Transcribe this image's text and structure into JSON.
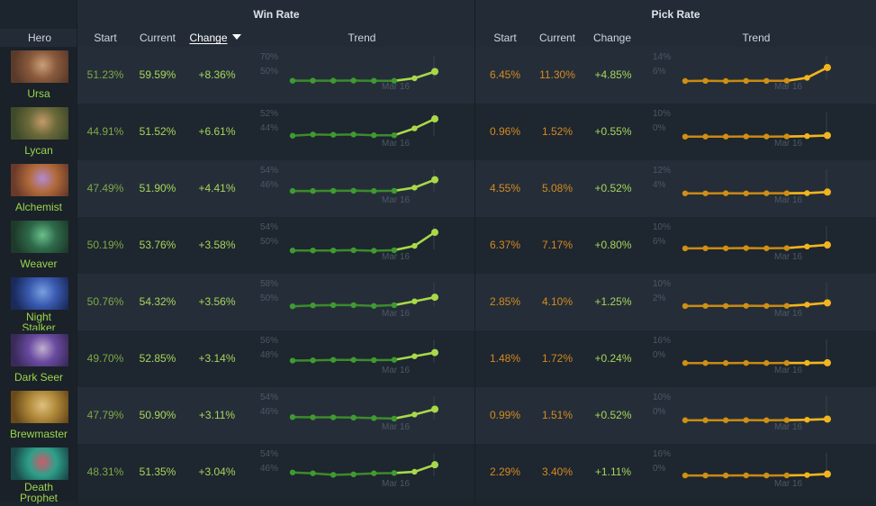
{
  "groups": {
    "win_rate": "Win Rate",
    "pick_rate": "Pick Rate"
  },
  "columns": {
    "hero": "Hero",
    "start": "Start",
    "current": "Current",
    "change": "Change",
    "trend": "Trend"
  },
  "sort": {
    "column": "win_rate.change",
    "direction": "descending"
  },
  "colors": {
    "win_line": "#3c8a2e",
    "win_point": "#3f9b31",
    "win_accent": "#a9d84a",
    "pick_line": "#c98a12",
    "pick_point": "#d18f13",
    "pick_accent": "#f2b51d",
    "axis_text": "#4a5866"
  },
  "heroes": [
    {
      "name": "Ursa",
      "icon": "ursa-portrait-icon",
      "win": {
        "start": "51.23%",
        "current": "59.59%",
        "change": "+8.36%",
        "axis_top": "70%",
        "axis_bottom": "50%",
        "date": "Mar 16",
        "values": [
          51.23,
          51.3,
          51.25,
          51.35,
          51.2,
          51.18,
          53.5,
          59.59
        ],
        "min": 46,
        "max": 74
      },
      "pick": {
        "start": "6.45%",
        "current": "11.30%",
        "change": "+4.85%",
        "axis_top": "14%",
        "axis_bottom": "6%",
        "date": "Mar 16",
        "values": [
          6.45,
          6.5,
          6.45,
          6.5,
          6.5,
          6.55,
          7.6,
          11.3
        ],
        "min": 4.5,
        "max": 15.5
      }
    },
    {
      "name": "Lycan",
      "icon": "lycan-portrait-icon",
      "win": {
        "start": "44.91%",
        "current": "51.52%",
        "change": "+6.61%",
        "axis_top": "52%",
        "axis_bottom": "44%",
        "date": "Mar 16",
        "values": [
          44.91,
          45.4,
          45.3,
          45.4,
          45.1,
          45.1,
          47.8,
          51.52
        ],
        "min": 42,
        "max": 54
      },
      "pick": {
        "start": "0.96%",
        "current": "1.52%",
        "change": "+0.55%",
        "axis_top": "10%",
        "axis_bottom": "0%",
        "date": "Mar 16",
        "values": [
          0.96,
          1.0,
          1.0,
          1.05,
          1.02,
          1.05,
          1.2,
          1.52
        ],
        "min": -2,
        "max": 12
      }
    },
    {
      "name": "Alchemist",
      "icon": "alchemist-portrait-icon",
      "win": {
        "start": "47.49%",
        "current": "51.90%",
        "change": "+4.41%",
        "axis_top": "54%",
        "axis_bottom": "46%",
        "date": "Mar 16",
        "values": [
          47.49,
          47.5,
          47.55,
          47.6,
          47.5,
          47.55,
          48.8,
          51.9
        ],
        "min": 44,
        "max": 56
      },
      "pick": {
        "start": "4.55%",
        "current": "5.08%",
        "change": "+0.52%",
        "axis_top": "12%",
        "axis_bottom": "4%",
        "date": "Mar 16",
        "values": [
          4.55,
          4.55,
          4.6,
          4.55,
          4.6,
          4.6,
          4.65,
          5.08
        ],
        "min": 2,
        "max": 14
      }
    },
    {
      "name": "Weaver",
      "icon": "weaver-portrait-icon",
      "win": {
        "start": "50.19%",
        "current": "53.76%",
        "change": "+3.58%",
        "axis_top": "54%",
        "axis_bottom": "50%",
        "date": "Mar 16",
        "values": [
          50.19,
          50.2,
          50.2,
          50.25,
          50.15,
          50.25,
          51.1,
          53.76
        ],
        "min": 49,
        "max": 55
      },
      "pick": {
        "start": "6.37%",
        "current": "7.17%",
        "change": "+0.80%",
        "axis_top": "10%",
        "axis_bottom": "6%",
        "date": "Mar 16",
        "values": [
          6.37,
          6.4,
          6.4,
          6.45,
          6.4,
          6.45,
          6.8,
          7.17
        ],
        "min": 4.5,
        "max": 11.5
      }
    },
    {
      "name": "Night Stalker",
      "icon": "night-stalker-portrait-icon",
      "win": {
        "start": "50.76%",
        "current": "54.32%",
        "change": "+3.56%",
        "axis_top": "58%",
        "axis_bottom": "50%",
        "date": "Mar 16",
        "values": [
          50.76,
          51.1,
          51.2,
          51.2,
          50.9,
          51.2,
          52.7,
          54.32
        ],
        "min": 48,
        "max": 60
      },
      "pick": {
        "start": "2.85%",
        "current": "4.10%",
        "change": "+1.25%",
        "axis_top": "10%",
        "axis_bottom": "2%",
        "date": "Mar 16",
        "values": [
          2.85,
          2.9,
          2.9,
          2.95,
          2.9,
          2.95,
          3.4,
          4.1
        ],
        "min": 0,
        "max": 12
      }
    },
    {
      "name": "Dark Seer",
      "icon": "dark-seer-portrait-icon",
      "win": {
        "start": "49.70%",
        "current": "52.85%",
        "change": "+3.14%",
        "axis_top": "56%",
        "axis_bottom": "48%",
        "date": "Mar 16",
        "values": [
          49.7,
          49.8,
          50.0,
          50.0,
          49.9,
          50.0,
          51.4,
          52.85
        ],
        "min": 46,
        "max": 58
      },
      "pick": {
        "start": "1.48%",
        "current": "1.72%",
        "change": "+0.24%",
        "axis_top": "16%",
        "axis_bottom": "0%",
        "date": "Mar 16",
        "values": [
          1.48,
          1.5,
          1.5,
          1.55,
          1.5,
          1.55,
          1.6,
          1.72
        ],
        "min": -4,
        "max": 20
      }
    },
    {
      "name": "Brewmaster",
      "icon": "brewmaster-portrait-icon",
      "win": {
        "start": "47.79%",
        "current": "50.90%",
        "change": "+3.11%",
        "axis_top": "54%",
        "axis_bottom": "46%",
        "date": "Mar 16",
        "values": [
          47.79,
          47.7,
          47.7,
          47.6,
          47.4,
          47.2,
          48.8,
          50.9
        ],
        "min": 44,
        "max": 56
      },
      "pick": {
        "start": "0.99%",
        "current": "1.51%",
        "change": "+0.52%",
        "axis_top": "10%",
        "axis_bottom": "0%",
        "date": "Mar 16",
        "values": [
          0.99,
          1.0,
          1.0,
          1.05,
          1.0,
          1.05,
          1.2,
          1.51
        ],
        "min": -2,
        "max": 12
      }
    },
    {
      "name": "Death Prophet",
      "icon": "death-prophet-portrait-icon",
      "win": {
        "start": "48.31%",
        "current": "51.35%",
        "change": "+3.04%",
        "axis_top": "54%",
        "axis_bottom": "46%",
        "date": "Mar 16",
        "values": [
          48.31,
          48.0,
          47.4,
          47.6,
          48.0,
          48.1,
          48.6,
          51.35
        ],
        "min": 44,
        "max": 56
      },
      "pick": {
        "start": "2.29%",
        "current": "3.40%",
        "change": "+1.11%",
        "axis_top": "16%",
        "axis_bottom": "0%",
        "date": "Mar 16",
        "values": [
          2.29,
          2.3,
          2.3,
          2.35,
          2.3,
          2.35,
          2.6,
          3.4
        ],
        "min": -4,
        "max": 20
      }
    }
  ]
}
